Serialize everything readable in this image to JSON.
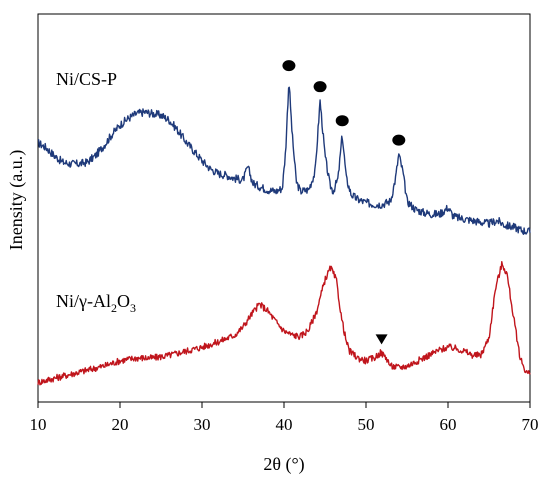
{
  "chart_data": {
    "type": "line",
    "xlabel": "2θ (°)",
    "ylabel": "Inensity (a.u.)",
    "xlim": [
      10,
      70
    ],
    "xticks": [
      10,
      20,
      30,
      40,
      50,
      60,
      70
    ],
    "xtick_labels": [
      "10",
      "20",
      "30",
      "40",
      "50",
      "60",
      "70"
    ],
    "yticks_shown": false,
    "grid": false,
    "legend": "none",
    "series": [
      {
        "name": "Ni/CS-P",
        "name_parts": {
          "base": "Ni/CS-P"
        },
        "color": "#1f3a7a",
        "points": [
          [
            10,
            0.6
          ],
          [
            11,
            0.57
          ],
          [
            12,
            0.52
          ],
          [
            13,
            0.48
          ],
          [
            14,
            0.47
          ],
          [
            15,
            0.47
          ],
          [
            16,
            0.48
          ],
          [
            17,
            0.52
          ],
          [
            18,
            0.58
          ],
          [
            19,
            0.65
          ],
          [
            20,
            0.71
          ],
          [
            21,
            0.75
          ],
          [
            22,
            0.78
          ],
          [
            23,
            0.79
          ],
          [
            24,
            0.78
          ],
          [
            25,
            0.77
          ],
          [
            26,
            0.74
          ],
          [
            27,
            0.68
          ],
          [
            28,
            0.61
          ],
          [
            29,
            0.55
          ],
          [
            30,
            0.49
          ],
          [
            31,
            0.44
          ],
          [
            32,
            0.41
          ],
          [
            33,
            0.4
          ],
          [
            34,
            0.38
          ],
          [
            35,
            0.37
          ],
          [
            35.6,
            0.45
          ],
          [
            36.2,
            0.35
          ],
          [
            37,
            0.33
          ],
          [
            38,
            0.31
          ],
          [
            39,
            0.3
          ],
          [
            39.8,
            0.32
          ],
          [
            40.2,
            0.55
          ],
          [
            40.6,
            0.99
          ],
          [
            41.0,
            0.65
          ],
          [
            41.5,
            0.36
          ],
          [
            42,
            0.3
          ],
          [
            43,
            0.31
          ],
          [
            43.8,
            0.42
          ],
          [
            44.4,
            0.86
          ],
          [
            45.0,
            0.52
          ],
          [
            45.6,
            0.34
          ],
          [
            46,
            0.3
          ],
          [
            46.6,
            0.38
          ],
          [
            47.1,
            0.65
          ],
          [
            47.6,
            0.38
          ],
          [
            48.2,
            0.28
          ],
          [
            49,
            0.25
          ],
          [
            50,
            0.23
          ],
          [
            51,
            0.22
          ],
          [
            52,
            0.22
          ],
          [
            53,
            0.24
          ],
          [
            53.6,
            0.38
          ],
          [
            54.0,
            0.53
          ],
          [
            54.5,
            0.42
          ],
          [
            55,
            0.24
          ],
          [
            56,
            0.19
          ],
          [
            57,
            0.17
          ],
          [
            58,
            0.16
          ],
          [
            59,
            0.16
          ],
          [
            60,
            0.2
          ],
          [
            60.6,
            0.15
          ],
          [
            61,
            0.14
          ],
          [
            62,
            0.13
          ],
          [
            63,
            0.12
          ],
          [
            64,
            0.11
          ],
          [
            65,
            0.1
          ],
          [
            66,
            0.12
          ],
          [
            67,
            0.09
          ],
          [
            68,
            0.08
          ],
          [
            69,
            0.06
          ],
          [
            70,
            0.05
          ]
        ],
        "markers": [
          {
            "symbol": "circle",
            "x": 40.6
          },
          {
            "symbol": "circle",
            "x": 44.4
          },
          {
            "symbol": "circle",
            "x": 47.1
          },
          {
            "symbol": "circle",
            "x": 54.0
          }
        ]
      },
      {
        "name": "Ni/γ-Al2O3",
        "name_parts": {
          "base": "Ni/γ-Al",
          "sub1": "2",
          "mid": "O",
          "sub2": "3"
        },
        "color": "#c0151c",
        "points": [
          [
            10,
            0.02
          ],
          [
            12,
            0.05
          ],
          [
            14,
            0.08
          ],
          [
            16,
            0.11
          ],
          [
            18,
            0.14
          ],
          [
            20,
            0.18
          ],
          [
            22,
            0.2
          ],
          [
            24,
            0.2
          ],
          [
            26,
            0.22
          ],
          [
            28,
            0.25
          ],
          [
            30,
            0.28
          ],
          [
            32,
            0.32
          ],
          [
            34,
            0.37
          ],
          [
            35,
            0.43
          ],
          [
            36,
            0.52
          ],
          [
            37,
            0.6
          ],
          [
            38,
            0.55
          ],
          [
            39,
            0.47
          ],
          [
            40,
            0.4
          ],
          [
            41,
            0.37
          ],
          [
            42,
            0.36
          ],
          [
            43,
            0.41
          ],
          [
            44,
            0.55
          ],
          [
            45,
            0.78
          ],
          [
            45.7,
            0.87
          ],
          [
            46.4,
            0.77
          ],
          [
            47,
            0.5
          ],
          [
            47.6,
            0.32
          ],
          [
            48,
            0.25
          ],
          [
            49,
            0.2
          ],
          [
            50,
            0.18
          ],
          [
            51,
            0.2
          ],
          [
            51.8,
            0.24
          ],
          [
            52.5,
            0.2
          ],
          [
            53,
            0.14
          ],
          [
            54,
            0.13
          ],
          [
            55,
            0.14
          ],
          [
            56,
            0.17
          ],
          [
            57,
            0.2
          ],
          [
            58,
            0.23
          ],
          [
            59,
            0.26
          ],
          [
            60,
            0.28
          ],
          [
            61,
            0.27
          ],
          [
            62,
            0.25
          ],
          [
            63,
            0.22
          ],
          [
            64,
            0.22
          ],
          [
            65,
            0.35
          ],
          [
            65.8,
            0.72
          ],
          [
            66.6,
            0.9
          ],
          [
            67.2,
            0.82
          ],
          [
            68,
            0.5
          ],
          [
            68.8,
            0.2
          ],
          [
            69.5,
            0.1
          ],
          [
            70,
            0.08
          ]
        ],
        "markers": [
          {
            "symbol": "triangle-down",
            "x": 51.9
          }
        ]
      }
    ]
  }
}
